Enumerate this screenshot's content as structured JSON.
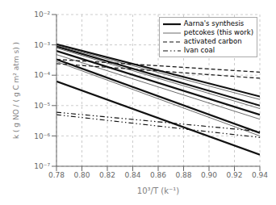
{
  "chart_data": {
    "type": "line",
    "xlabel": "10³/T (k⁻¹)",
    "ylabel": "k ( g NO / ( g C m² atm s) )",
    "log": "y",
    "grid": true,
    "legend": "upper right",
    "xlim": [
      0.78,
      0.94
    ],
    "ylim": [
      1e-07,
      0.01
    ],
    "xticks": [
      0.78,
      {
        "value": 0.8,
        "label": "0.80"
      },
      0.82,
      0.84,
      0.86,
      0.88,
      {
        "value": 0.9,
        "label": "0.90"
      },
      0.92,
      0.94
    ],
    "yticks": [
      {
        "value": 1e-07,
        "label": "10⁻⁷"
      },
      {
        "value": 1e-06,
        "label": "10⁻⁶"
      },
      {
        "value": 1e-05,
        "label": "10⁻⁵"
      },
      {
        "value": 0.0001,
        "label": "10⁻⁴"
      },
      {
        "value": 0.001,
        "label": "10⁻³"
      },
      {
        "value": 0.01,
        "label": "10⁻²"
      }
    ],
    "series": [
      {
        "name": "Aarna's synthesis",
        "color": "#111111",
        "line_style": "solid",
        "lines": [
          {
            "x": [
              0.78,
              0.94
            ],
            "values": [
              0.001047129,
              1.995262e-05
            ]
          },
          {
            "x": [
              0.78,
              0.94
            ],
            "values": [
              0.0008912509,
              1e-05
            ]
          },
          {
            "x": [
              0.78,
              0.94
            ],
            "values": [
              0.0006309573,
              5.011872e-06
            ]
          },
          {
            "x": [
              0.78,
              0.94
            ],
            "values": [
              0.0003311311,
              1.258925e-06
            ]
          },
          {
            "x": [
              0.78,
              0.94
            ],
            "values": [
              6.309573e-05,
              2.398833e-07
            ]
          }
        ]
      },
      {
        "name": "petcokes (this work)",
        "color": "#444444",
        "line_style": "solid",
        "lines": [
          {
            "x": [
              0.78,
              0.94
            ],
            "values": [
              0.0009549926,
              1.584893e-05
            ]
          },
          {
            "x": [
              0.78,
              0.94
            ],
            "values": [
              0.0007943282,
              7.943282e-06
            ]
          },
          {
            "x": [
              0.78,
              0.94
            ],
            "values": [
              0.0004786301,
              3.548134e-06
            ]
          },
          {
            "x": [
              0.78,
              0.94
            ],
            "values": [
              0.0002818383,
              1e-06
            ]
          }
        ]
      },
      {
        "name": "activated carbon",
        "color": "#111111",
        "line_style": "dashed",
        "lines": [
          {
            "x": [
              0.78,
              0.94
            ],
            "values": [
              0.0003311311,
              0.0001258925
            ]
          },
          {
            "x": [
              0.78,
              0.94
            ],
            "values": [
              0.0002398833,
              7.943282e-05
            ]
          }
        ]
      },
      {
        "name": "Ivan coal",
        "color": "#111111",
        "line_style": "dashdotdot",
        "lines": [
          {
            "x": [
              0.78,
              0.94
            ],
            "values": [
              6.025596e-06,
              1.412538e-06
            ]
          },
          {
            "x": [
              0.78,
              0.94
            ],
            "values": [
              5.011872e-06,
              8.912509e-07
            ]
          }
        ]
      }
    ]
  }
}
